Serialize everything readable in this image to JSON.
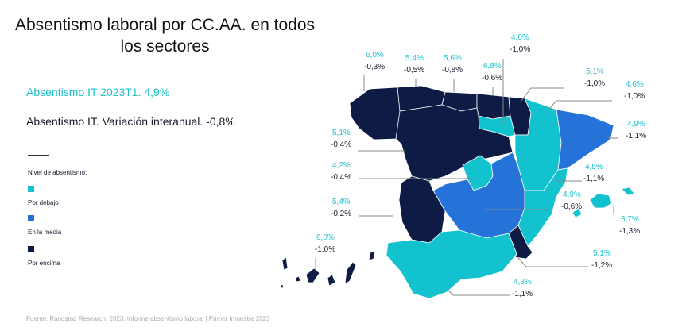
{
  "title": "Absentismo laboral por CC.AA. en todos los sectores",
  "kpi_rate": "Absentismo IT 2023T1. 4,9%",
  "kpi_change": "Absentismo IT. Variación interanual. -0,8%",
  "legend": {
    "title": "Nivel de absentismo:",
    "items": [
      {
        "label": "Por debajo",
        "color": "#12c3cf"
      },
      {
        "label": "En la media",
        "color": "#2573d9"
      },
      {
        "label": "Por encima",
        "color": "#0e1b44"
      }
    ]
  },
  "source": "Fuente: Randstad Research, 2023. Informe absentismo laboral | Primer trimestre 2023",
  "regions": [
    {
      "id": "galicia",
      "rate": "6,0%",
      "change": "-0,3%",
      "level": "Por encima"
    },
    {
      "id": "asturias",
      "rate": "5,4%",
      "change": "-0,5%",
      "level": "Por encima"
    },
    {
      "id": "cantabria",
      "rate": "5,6%",
      "change": "-0,8%",
      "level": "Por encima"
    },
    {
      "id": "pais-vasco",
      "rate": "6,8%",
      "change": "-0,6%",
      "level": "Por encima"
    },
    {
      "id": "la-rioja",
      "rate": "4,0%",
      "change": "-1,0%",
      "level": "Por debajo"
    },
    {
      "id": "navarra",
      "rate": "5,1%",
      "change": "-1,0%",
      "level": "Por encima"
    },
    {
      "id": "aragon",
      "rate": "4,6%",
      "change": "-1,0%",
      "level": "Por debajo"
    },
    {
      "id": "cataluna",
      "rate": "4,9%",
      "change": "-1,1%",
      "level": "En la media"
    },
    {
      "id": "castilla-y-leon",
      "rate": "5,1%",
      "change": "-0,4%",
      "level": "Por encima"
    },
    {
      "id": "madrid",
      "rate": "4,2%",
      "change": "-0,4%",
      "level": "Por debajo"
    },
    {
      "id": "comunitat-valenciana",
      "rate": "4,5%",
      "change": "-1,1%",
      "level": "Por debajo"
    },
    {
      "id": "castilla-la-mancha",
      "rate": "4,9%",
      "change": "-0,6%",
      "level": "En la media"
    },
    {
      "id": "extremadura",
      "rate": "5,4%",
      "change": "-0,2%",
      "level": "Por encima"
    },
    {
      "id": "baleares",
      "rate": "3,7%",
      "change": "-1,3%",
      "level": "Por debajo"
    },
    {
      "id": "canarias",
      "rate": "6,0%",
      "change": "-1,0%",
      "level": "Por encima"
    },
    {
      "id": "murcia",
      "rate": "5,1%",
      "change": "-1,2%",
      "level": "Por encima"
    },
    {
      "id": "andalucia",
      "rate": "4,3%",
      "change": "-1,1%",
      "level": "Por debajo"
    }
  ]
}
